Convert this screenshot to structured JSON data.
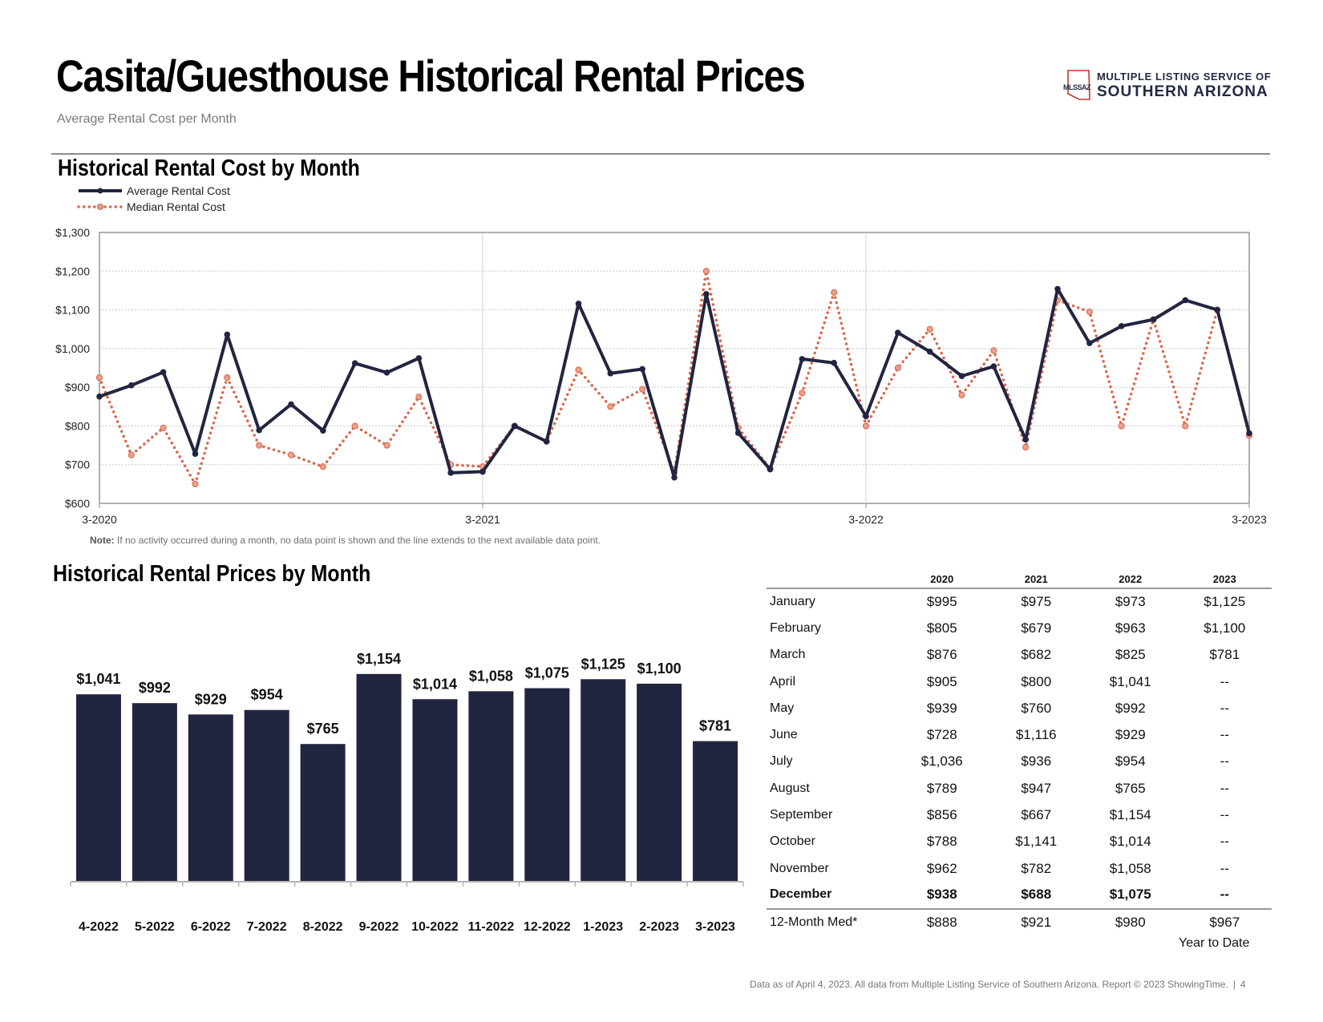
{
  "header": {
    "title": "Casita/Guesthouse Historical Rental Prices",
    "subtitle": "Average Rental Cost per Month"
  },
  "logo": {
    "abbr": "MLSSAZ",
    "line1": "MULTIPLE LISTING SERVICE OF",
    "line2": "SOUTHERN ARIZONA"
  },
  "colors": {
    "navy": "#222540",
    "median": "#d9684e",
    "grid": "#c8c8c8"
  },
  "chart_data": [
    {
      "type": "line",
      "title": "Historical Rental Cost by Month",
      "y_tick_labels": [
        "$600",
        "$700",
        "$800",
        "$900",
        "$1,000",
        "$1,100",
        "$1,200",
        "$1,300"
      ],
      "x_tick_labels": [
        "3-2020",
        "3-2021",
        "3-2022",
        "3-2023"
      ],
      "ylim": [
        600,
        1300
      ],
      "x_count": 37,
      "legend": "top-left",
      "note_label": "Note:",
      "note": " If no activity occurred during a month, no data point is shown and the line extends to the next available data point.",
      "series": [
        {
          "name": "Average Rental Cost",
          "style": "solid",
          "values": [
            876,
            905,
            939,
            728,
            1036,
            789,
            856,
            788,
            962,
            938,
            975,
            679,
            682,
            800,
            760,
            1116,
            936,
            947,
            667,
            1141,
            782,
            688,
            973,
            963,
            825,
            1041,
            992,
            929,
            954,
            765,
            1154,
            1014,
            1058,
            1075,
            1125,
            1100,
            781
          ]
        },
        {
          "name": "Median Rental Cost",
          "style": "dotted",
          "values": [
            925,
            725,
            795,
            650,
            925,
            750,
            725,
            695,
            800,
            750,
            875,
            700,
            695,
            800,
            760,
            945,
            850,
            895,
            680,
            1200,
            795,
            690,
            885,
            1145,
            800,
            950,
            1050,
            880,
            995,
            745,
            1125,
            1095,
            800,
            1075,
            800,
            1100,
            775
          ]
        }
      ]
    },
    {
      "type": "bar",
      "title": "Historical Rental Prices by Month",
      "categories": [
        "4-2022",
        "5-2022",
        "6-2022",
        "7-2022",
        "8-2022",
        "9-2022",
        "10-2022",
        "11-2022",
        "12-2022",
        "1-2023",
        "2-2023",
        "3-2023"
      ],
      "values": [
        1041,
        992,
        929,
        954,
        765,
        1154,
        1014,
        1058,
        1075,
        1125,
        1100,
        781
      ],
      "value_labels": [
        "$1,041",
        "$992",
        "$929",
        "$954",
        "$765",
        "$1,154",
        "$1,014",
        "$1,058",
        "$1,075",
        "$1,125",
        "$1,100",
        "$781"
      ],
      "ylim": [
        0,
        1300
      ]
    }
  ],
  "table": {
    "headers": [
      "",
      "2020",
      "2021",
      "2022",
      "2023"
    ],
    "rows": [
      [
        "January",
        "$995",
        "$975",
        "$973",
        "$1,125"
      ],
      [
        "February",
        "$805",
        "$679",
        "$963",
        "$1,100"
      ],
      [
        "March",
        "$876",
        "$682",
        "$825",
        "$781"
      ],
      [
        "April",
        "$905",
        "$800",
        "$1,041",
        "--"
      ],
      [
        "May",
        "$939",
        "$760",
        "$992",
        "--"
      ],
      [
        "June",
        "$728",
        "$1,116",
        "$929",
        "--"
      ],
      [
        "July",
        "$1,036",
        "$936",
        "$954",
        "--"
      ],
      [
        "August",
        "$789",
        "$947",
        "$765",
        "--"
      ],
      [
        "September",
        "$856",
        "$667",
        "$1,154",
        "--"
      ],
      [
        "October",
        "$788",
        "$1,141",
        "$1,014",
        "--"
      ],
      [
        "November",
        "$962",
        "$782",
        "$1,058",
        "--"
      ],
      [
        "December",
        "$938",
        "$688",
        "$1,075",
        "--"
      ]
    ],
    "median_row": [
      "12-Month Med*",
      "$888",
      "$921",
      "$980",
      "$967"
    ],
    "ytd_label": "Year to Date"
  },
  "footer": {
    "text": "Data as of April 4, 2023. All data from Multiple Listing Service of Southern Arizona. Report © 2023 ShowingTime.",
    "separator": "|",
    "page_number": "4"
  }
}
